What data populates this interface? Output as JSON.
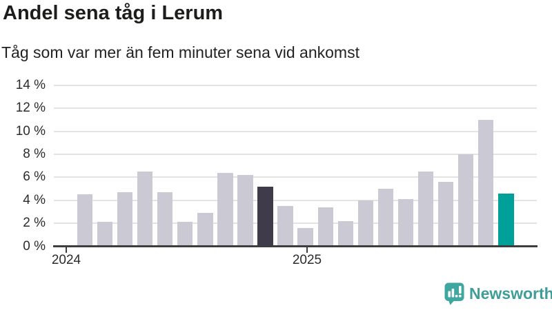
{
  "header": {
    "title": "Andel sena tåg i Lerum",
    "subtitle": "Tåg som var mer än fem minuter sena vid ankomst"
  },
  "chart_data": {
    "type": "bar",
    "title": "Andel sena tåg i Lerum",
    "subtitle": "Tåg som var mer än fem minuter sena vid ankomst",
    "unit": "%",
    "grid": true,
    "legend": false,
    "ylim": [
      0,
      14
    ],
    "categories": [
      "2024-01",
      "2024-02",
      "2024-03",
      "2024-04",
      "2024-05",
      "2024-06",
      "2024-07",
      "2024-08",
      "2024-09",
      "2024-10",
      "2024-11",
      "2024-12",
      "2025-01",
      "2025-02",
      "2025-03",
      "2025-04",
      "2025-05",
      "2025-06",
      "2025-07",
      "2025-08",
      "2025-09",
      "2025-10"
    ],
    "values": [
      4.5,
      2.1,
      4.7,
      6.5,
      4.7,
      2.1,
      2.9,
      6.4,
      6.2,
      5.2,
      3.5,
      1.6,
      3.4,
      2.2,
      4.0,
      5.0,
      4.1,
      6.5,
      5.6,
      8.0,
      11.0,
      4.6
    ],
    "bar_color": "#cbc9d3",
    "highlights": {
      "previous_year_same_month": {
        "index": 9,
        "color": "#3f3b4a"
      },
      "latest_month": {
        "index": 21,
        "color": "#00a09a"
      }
    },
    "y_axis": {
      "ticks": [
        {
          "value": 0,
          "label": "0 %"
        },
        {
          "value": 2,
          "label": "2 %"
        },
        {
          "value": 4,
          "label": "4 %"
        },
        {
          "value": 6,
          "label": "6 %"
        },
        {
          "value": 8,
          "label": "8 %"
        },
        {
          "value": 10,
          "label": "10 %"
        },
        {
          "value": 12,
          "label": "12 %"
        },
        {
          "value": 14,
          "label": "14 %"
        }
      ]
    },
    "x_axis": {
      "ticks": [
        {
          "label": "2024"
        },
        {
          "label": "2025"
        }
      ]
    }
  },
  "branding": {
    "name": "Newsworthy",
    "icon": "newsworthy-bubble-bar-chart-icon",
    "text_color": "#3f9d97",
    "icon_color": "#3ea79f"
  },
  "colors": {
    "background": "#ffffff",
    "text": "#1d1d1b",
    "gridline": "#e3e3e3",
    "axis": "#3d3d3d"
  }
}
